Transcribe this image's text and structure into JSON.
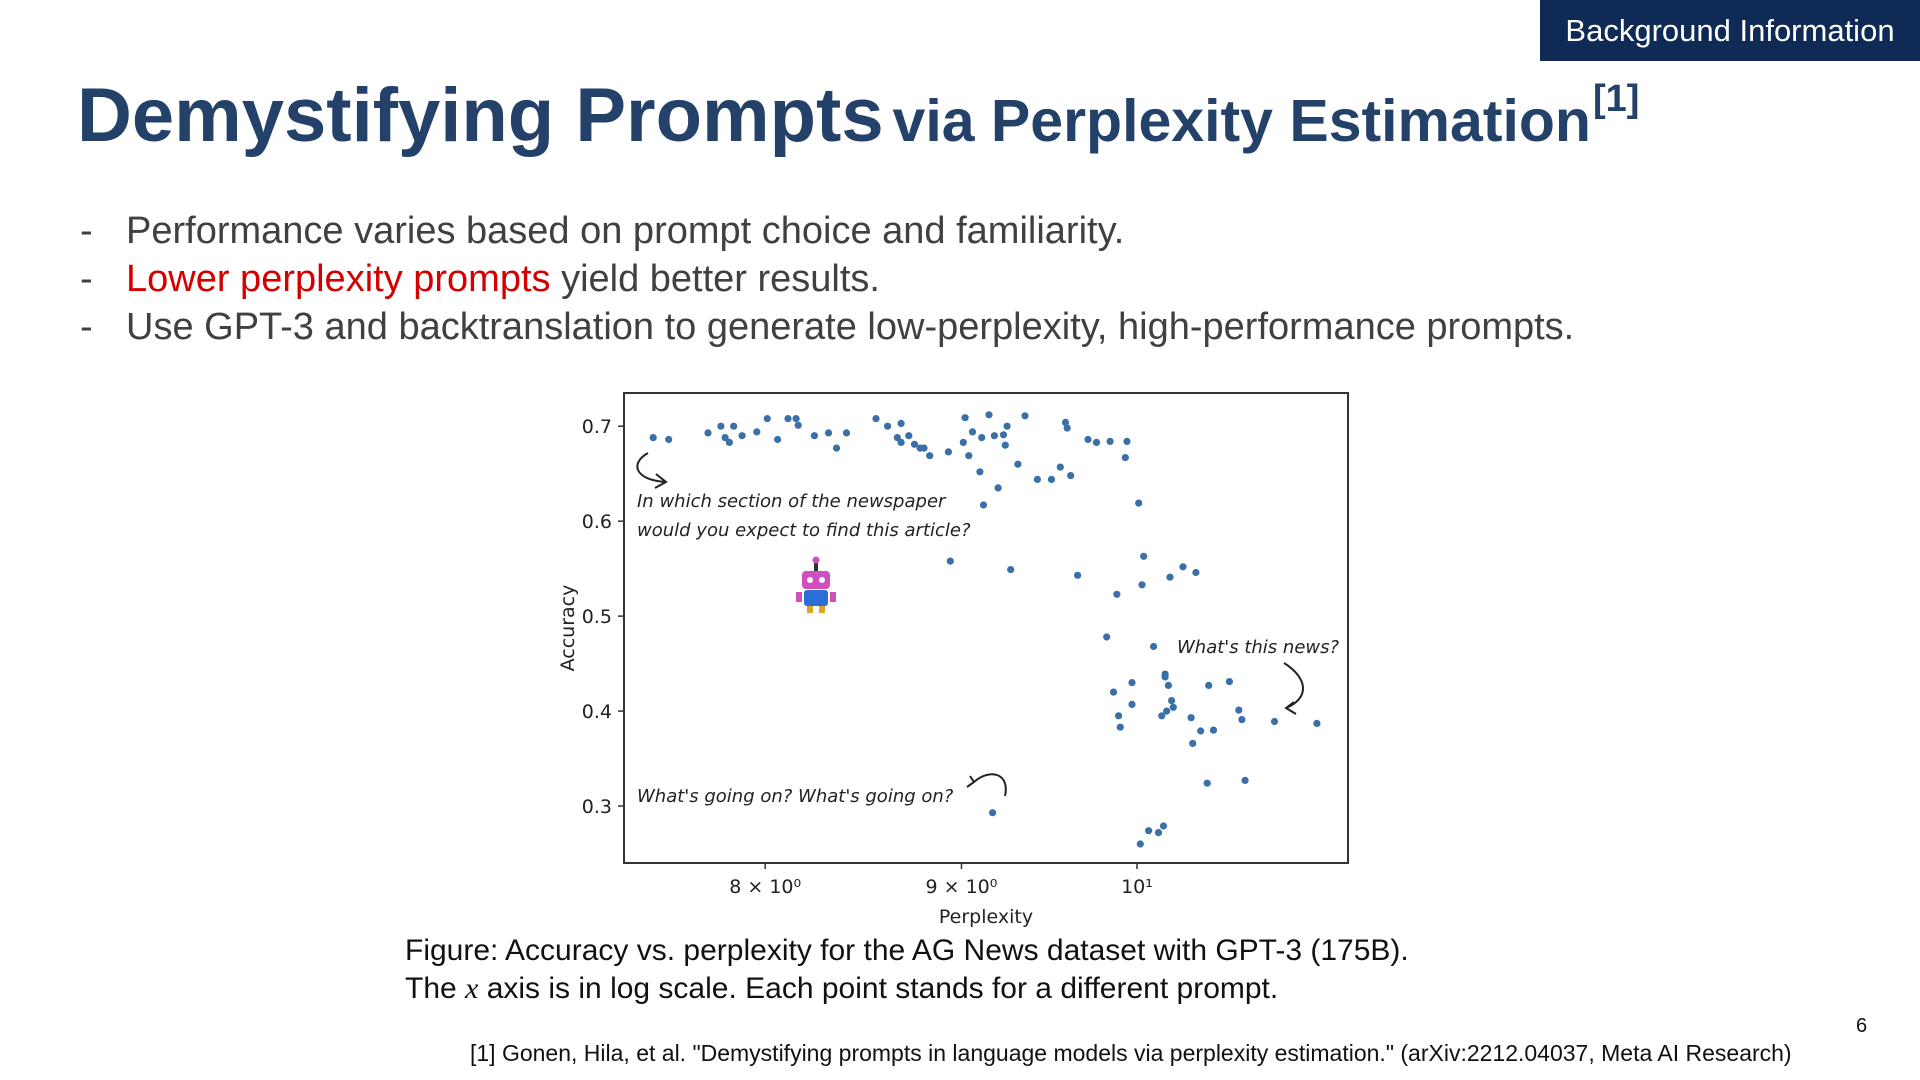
{
  "badge": "Background Information",
  "title": {
    "main": "Demystifying Prompts",
    "sub": "via Perplexity Estimation",
    "ref": "[1]"
  },
  "bullets": [
    {
      "dash": "-",
      "highlight": "",
      "text": "Performance varies based on prompt choice and familiarity."
    },
    {
      "dash": "-",
      "highlight": "Lower perplexity prompts",
      "text": " yield better results."
    },
    {
      "dash": "-",
      "highlight": "",
      "text": "Use GPT-3 and backtranslation to generate low-perplexity, high-performance prompts."
    }
  ],
  "chart_data": {
    "type": "scatter",
    "xlabel": "Perplexity",
    "ylabel": "Accuracy",
    "x_scale": "log",
    "xlim": [
      7.35,
      11.35
    ],
    "ylim": [
      0.24,
      0.735
    ],
    "x_ticks": [
      {
        "value": 8,
        "label": "8 × 10⁰"
      },
      {
        "value": 9,
        "label": "9 × 10⁰"
      },
      {
        "value": 10,
        "label": "10¹"
      }
    ],
    "y_ticks": [
      0.3,
      0.4,
      0.5,
      0.6,
      0.7
    ],
    "y_tick_labels": [
      "0.3",
      "0.4",
      "0.5",
      "0.6",
      "0.7"
    ],
    "marker_color": "#3a6fa8",
    "annotations": [
      {
        "lines": [
          "In which section of the newspaper",
          "would you expect to find this article?"
        ]
      },
      {
        "lines": [
          "What's this news?"
        ]
      },
      {
        "lines": [
          "What's going on? What's going on?"
        ]
      }
    ],
    "points": [
      [
        7.48,
        0.688
      ],
      [
        7.55,
        0.686
      ],
      [
        7.73,
        0.693
      ],
      [
        7.79,
        0.7
      ],
      [
        7.81,
        0.688
      ],
      [
        7.83,
        0.683
      ],
      [
        7.85,
        0.7
      ],
      [
        7.89,
        0.69
      ],
      [
        7.96,
        0.694
      ],
      [
        8.01,
        0.708
      ],
      [
        8.06,
        0.686
      ],
      [
        8.11,
        0.708
      ],
      [
        8.15,
        0.708
      ],
      [
        8.16,
        0.701
      ],
      [
        8.24,
        0.69
      ],
      [
        8.31,
        0.693
      ],
      [
        8.35,
        0.677
      ],
      [
        8.4,
        0.693
      ],
      [
        8.55,
        0.708
      ],
      [
        8.61,
        0.7
      ],
      [
        8.66,
        0.688
      ],
      [
        8.68,
        0.703
      ],
      [
        8.68,
        0.683
      ],
      [
        8.72,
        0.69
      ],
      [
        8.75,
        0.681
      ],
      [
        8.78,
        0.677
      ],
      [
        8.8,
        0.677
      ],
      [
        8.83,
        0.669
      ],
      [
        8.93,
        0.673
      ],
      [
        8.94,
        0.558
      ],
      [
        9.01,
        0.683
      ],
      [
        9.02,
        0.709
      ],
      [
        9.04,
        0.669
      ],
      [
        9.06,
        0.694
      ],
      [
        9.1,
        0.652
      ],
      [
        9.11,
        0.688
      ],
      [
        9.12,
        0.617
      ],
      [
        9.15,
        0.712
      ],
      [
        9.18,
        0.69
      ],
      [
        9.2,
        0.635
      ],
      [
        9.23,
        0.691
      ],
      [
        9.24,
        0.68
      ],
      [
        9.25,
        0.7
      ],
      [
        9.27,
        0.549
      ],
      [
        9.31,
        0.66
      ],
      [
        9.35,
        0.711
      ],
      [
        9.42,
        0.644
      ],
      [
        9.5,
        0.644
      ],
      [
        9.55,
        0.657
      ],
      [
        9.58,
        0.704
      ],
      [
        9.59,
        0.698
      ],
      [
        9.61,
        0.648
      ],
      [
        9.65,
        0.543
      ],
      [
        9.71,
        0.686
      ],
      [
        9.76,
        0.683
      ],
      [
        9.82,
        0.478
      ],
      [
        9.84,
        0.684
      ],
      [
        9.86,
        0.42
      ],
      [
        9.88,
        0.523
      ],
      [
        9.89,
        0.395
      ],
      [
        9.9,
        0.383
      ],
      [
        9.93,
        0.667
      ],
      [
        9.94,
        0.684
      ],
      [
        9.97,
        0.43
      ],
      [
        9.97,
        0.407
      ],
      [
        10.01,
        0.619
      ],
      [
        10.03,
        0.533
      ],
      [
        10.04,
        0.563
      ],
      [
        10.1,
        0.468
      ],
      [
        10.15,
        0.395
      ],
      [
        10.17,
        0.439
      ],
      [
        10.17,
        0.436
      ],
      [
        10.18,
        0.4
      ],
      [
        10.19,
        0.427
      ],
      [
        10.2,
        0.541
      ],
      [
        10.21,
        0.411
      ],
      [
        10.22,
        0.404
      ],
      [
        10.28,
        0.552
      ],
      [
        10.33,
        0.393
      ],
      [
        10.34,
        0.366
      ],
      [
        10.36,
        0.546
      ],
      [
        10.39,
        0.379
      ],
      [
        10.43,
        0.324
      ],
      [
        10.44,
        0.427
      ],
      [
        10.47,
        0.38
      ],
      [
        10.57,
        0.431
      ],
      [
        10.63,
        0.401
      ],
      [
        10.65,
        0.391
      ],
      [
        10.67,
        0.327
      ],
      [
        10.86,
        0.389
      ],
      [
        11.14,
        0.387
      ],
      [
        9.17,
        0.293
      ],
      [
        10.02,
        0.26
      ],
      [
        10.07,
        0.274
      ],
      [
        10.13,
        0.272
      ],
      [
        10.16,
        0.279
      ]
    ]
  },
  "caption": {
    "line1": "Figure: Accuracy vs. perplexity for the AG News dataset with GPT-3 (175B).",
    "line2_pre": "The ",
    "line2_var": "x",
    "line2_post": " axis is in log scale. Each point stands for a different prompt."
  },
  "page_number": "6",
  "reference": "[1] Gonen, Hila, et al. \"Demystifying prompts in language models via perplexity estimation.\" (arXiv:2212.04037, Meta AI Research)"
}
